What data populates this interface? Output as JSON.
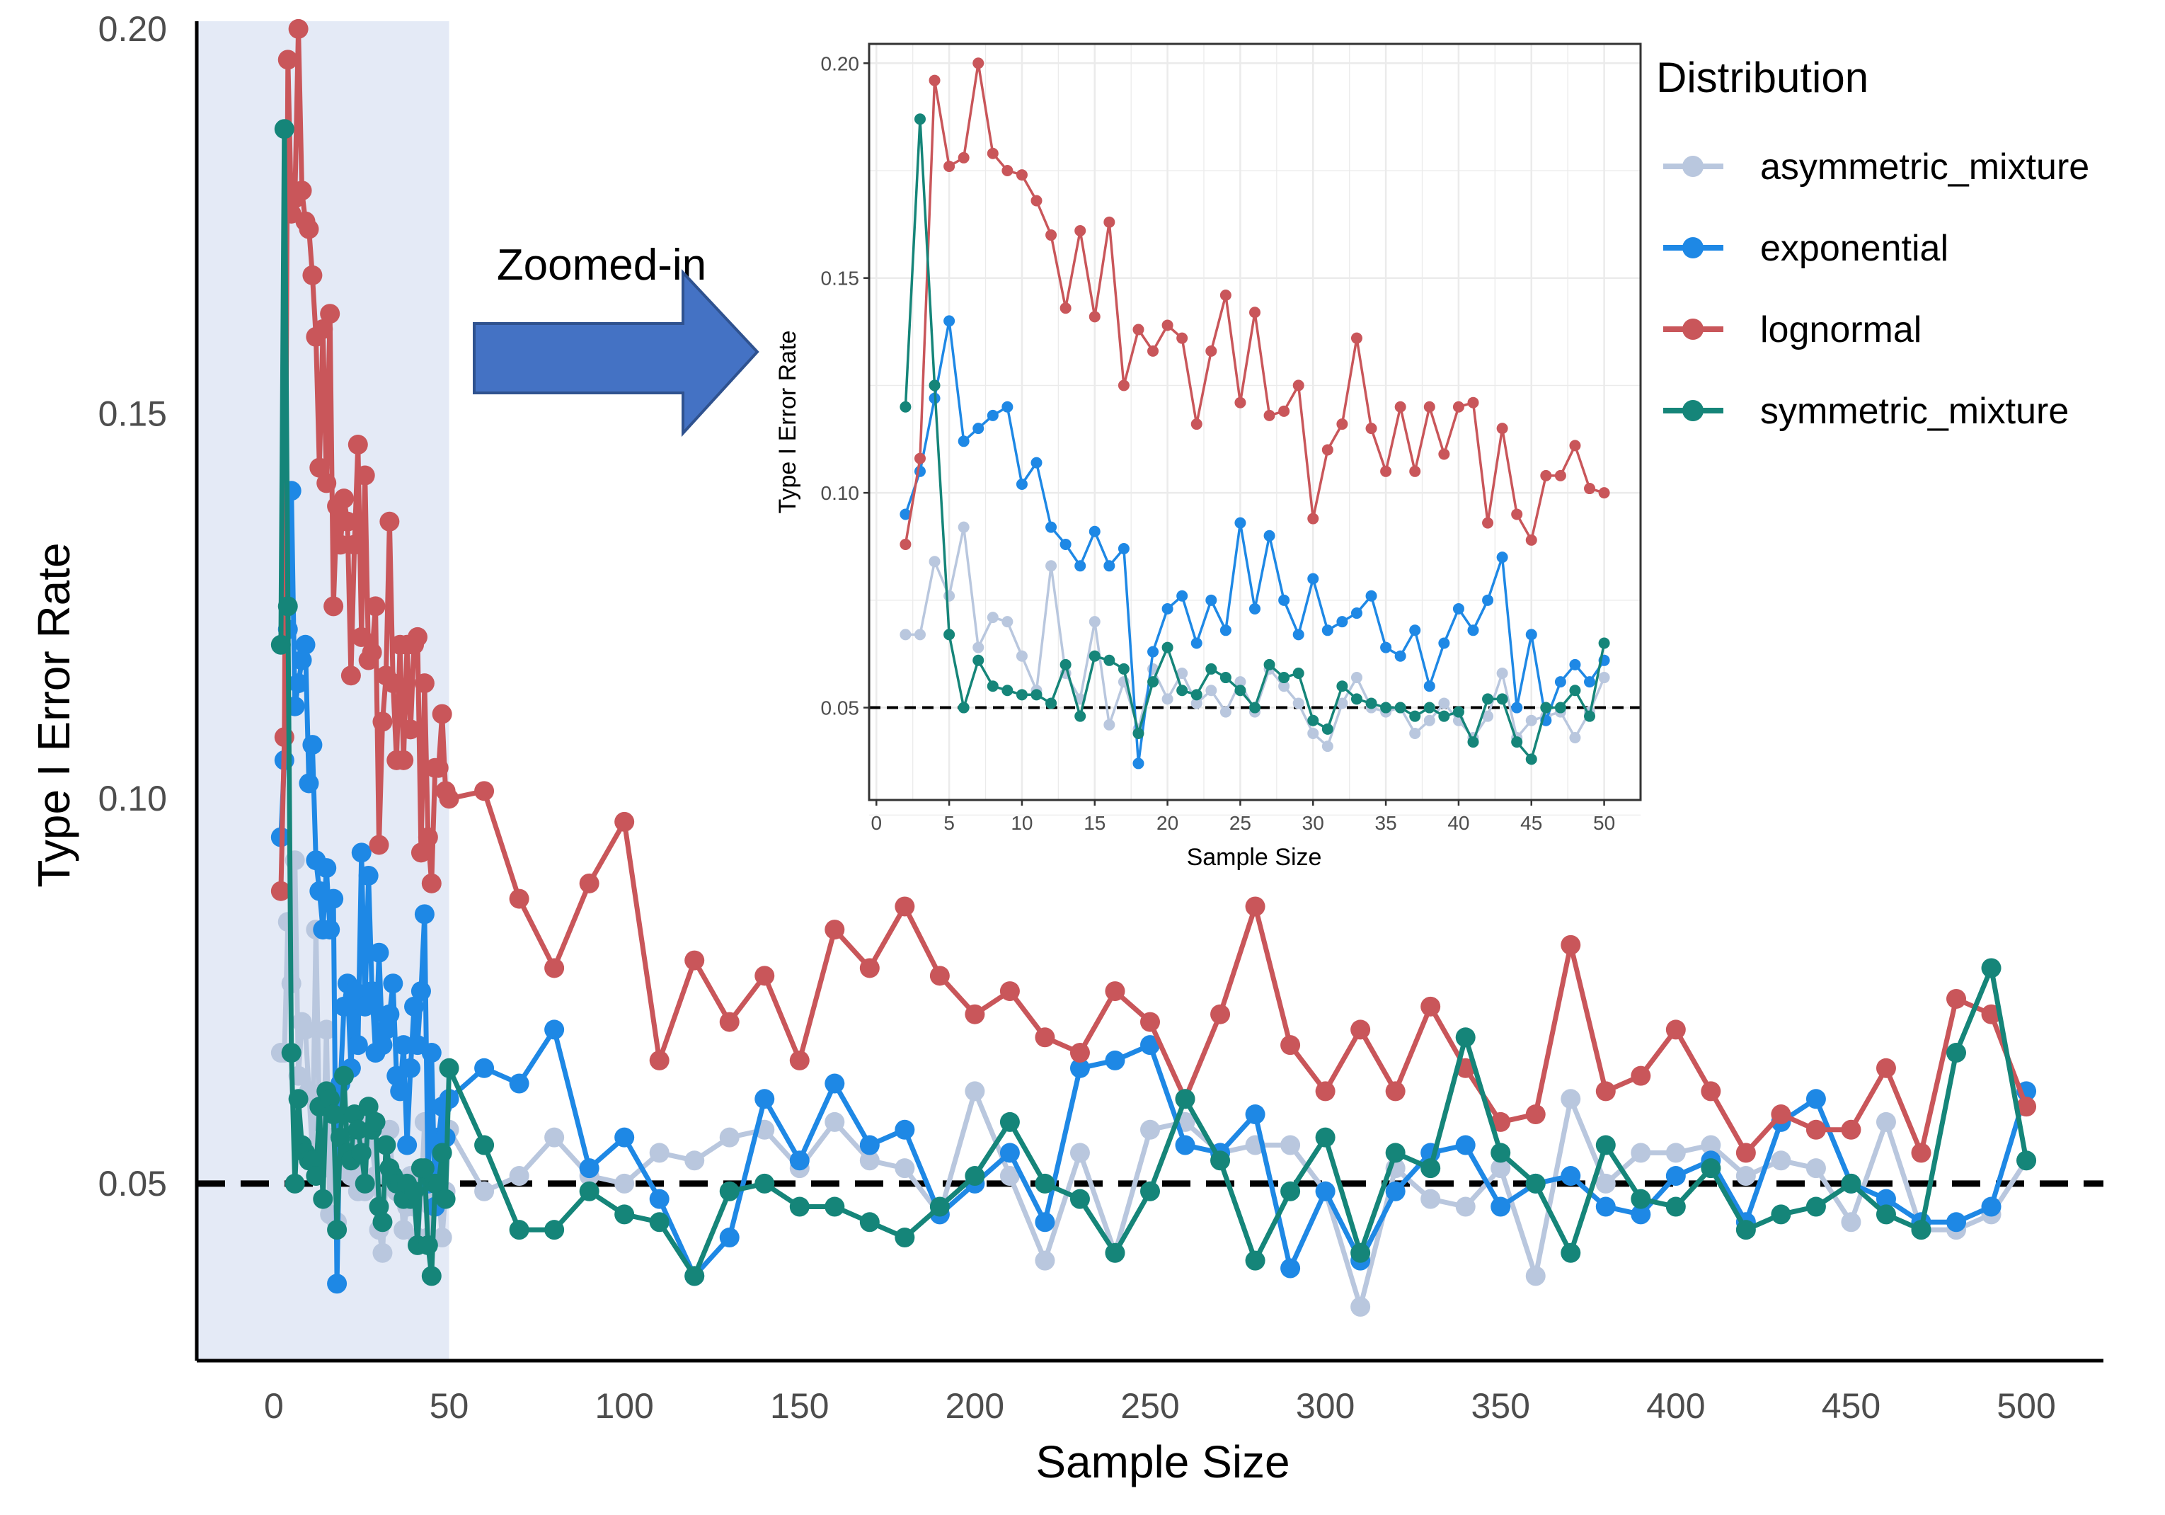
{
  "annotation": "Zoomed-in",
  "legend": {
    "title": "Distribution",
    "items": [
      {
        "label": "asymmetric_mixture",
        "color": "#b9c7de"
      },
      {
        "label": "exponential",
        "color": "#1e88e5"
      },
      {
        "label": "lognormal",
        "color": "#c9565a"
      },
      {
        "label": "symmetric_mixture",
        "color": "#158579"
      }
    ]
  },
  "colors": {
    "highlight": "#e4eaf6",
    "arrow_fill": "#4472c4",
    "arrow_stroke": "#2f528f",
    "reference": "#000000"
  },
  "chart_data": [
    {
      "type": "line",
      "xlabel": "Sample Size",
      "ylabel": "Type I Error Rate",
      "xlim": [
        -22,
        522
      ],
      "ylim": [
        0.027,
        0.201
      ],
      "xticks": [
        0,
        50,
        100,
        150,
        200,
        250,
        300,
        350,
        400,
        450,
        500
      ],
      "yticks": [
        0.05,
        0.1,
        0.15,
        0.2
      ],
      "ytick_labels": [
        "0.05",
        "0.10",
        "0.15",
        "0.20"
      ],
      "highlight_x": [
        -22,
        50
      ],
      "reference_y": 0.05,
      "x": [
        2,
        3,
        4,
        5,
        6,
        7,
        8,
        9,
        10,
        11,
        12,
        13,
        14,
        15,
        16,
        17,
        18,
        19,
        20,
        21,
        22,
        23,
        24,
        25,
        26,
        27,
        28,
        29,
        30,
        31,
        32,
        33,
        34,
        35,
        36,
        37,
        38,
        39,
        40,
        41,
        42,
        43,
        44,
        45,
        46,
        47,
        48,
        49,
        50,
        60,
        70,
        80,
        90,
        100,
        110,
        120,
        130,
        140,
        150,
        160,
        170,
        180,
        190,
        200,
        210,
        220,
        230,
        240,
        250,
        260,
        270,
        280,
        290,
        300,
        310,
        320,
        330,
        340,
        350,
        360,
        370,
        380,
        390,
        400,
        410,
        420,
        430,
        440,
        450,
        460,
        470,
        480,
        490,
        500
      ],
      "series": [
        {
          "name": "asymmetric_mixture",
          "values": [
            0.067,
            0.067,
            0.084,
            0.076,
            0.092,
            0.064,
            0.071,
            0.07,
            0.062,
            0.054,
            0.083,
            0.058,
            0.052,
            0.07,
            0.046,
            0.056,
            0.045,
            0.059,
            0.052,
            0.058,
            0.051,
            0.054,
            0.049,
            0.056,
            0.049,
            0.059,
            0.055,
            0.051,
            0.044,
            0.041,
            0.051,
            0.057,
            0.05,
            0.049,
            0.05,
            0.044,
            0.047,
            0.051,
            0.047,
            0.043,
            0.048,
            0.058,
            0.043,
            0.047,
            0.048,
            0.049,
            0.043,
            0.049,
            0.057,
            0.049,
            0.051,
            0.056,
            0.051,
            0.05,
            0.054,
            0.053,
            0.056,
            0.057,
            0.052,
            0.058,
            0.053,
            0.052,
            0.046,
            0.062,
            0.051,
            0.04,
            0.054,
            0.041,
            0.057,
            0.058,
            0.054,
            0.055,
            0.055,
            0.049,
            0.034,
            0.052,
            0.048,
            0.047,
            0.052,
            0.038,
            0.061,
            0.05,
            0.054,
            0.054,
            0.055,
            0.051,
            0.053,
            0.052,
            0.045,
            0.058,
            0.044,
            0.044,
            0.046,
            0.053
          ]
        },
        {
          "name": "exponential",
          "values": [
            0.095,
            0.105,
            0.122,
            0.14,
            0.112,
            0.115,
            0.118,
            0.12,
            0.102,
            0.107,
            0.092,
            0.088,
            0.083,
            0.091,
            0.083,
            0.087,
            0.037,
            0.063,
            0.073,
            0.076,
            0.065,
            0.075,
            0.068,
            0.093,
            0.073,
            0.09,
            0.075,
            0.067,
            0.08,
            0.068,
            0.07,
            0.072,
            0.076,
            0.064,
            0.062,
            0.068,
            0.055,
            0.065,
            0.073,
            0.068,
            0.075,
            0.085,
            0.05,
            0.067,
            0.047,
            0.056,
            0.06,
            0.056,
            0.061,
            0.065,
            0.063,
            0.07,
            0.052,
            0.056,
            0.048,
            0.038,
            0.043,
            0.061,
            0.053,
            0.063,
            0.055,
            0.057,
            0.046,
            0.05,
            0.054,
            0.045,
            0.065,
            0.066,
            0.068,
            0.055,
            0.054,
            0.059,
            0.039,
            0.049,
            0.04,
            0.049,
            0.054,
            0.055,
            0.047,
            0.05,
            0.051,
            0.047,
            0.046,
            0.051,
            0.053,
            0.045,
            0.058,
            0.061,
            0.05,
            0.048,
            0.045,
            0.045,
            0.047,
            0.062
          ]
        },
        {
          "name": "lognormal",
          "values": [
            0.088,
            0.108,
            0.196,
            0.176,
            0.178,
            0.2,
            0.179,
            0.175,
            0.174,
            0.168,
            0.16,
            0.143,
            0.161,
            0.141,
            0.163,
            0.125,
            0.138,
            0.133,
            0.139,
            0.136,
            0.116,
            0.133,
            0.146,
            0.121,
            0.142,
            0.118,
            0.119,
            0.125,
            0.094,
            0.11,
            0.116,
            0.136,
            0.115,
            0.105,
            0.12,
            0.105,
            0.12,
            0.109,
            0.12,
            0.121,
            0.093,
            0.115,
            0.095,
            0.089,
            0.104,
            0.104,
            0.111,
            0.101,
            0.1,
            0.101,
            0.087,
            0.078,
            0.089,
            0.097,
            0.066,
            0.079,
            0.071,
            0.077,
            0.066,
            0.083,
            0.078,
            0.086,
            0.077,
            0.072,
            0.075,
            0.069,
            0.067,
            0.075,
            0.071,
            0.061,
            0.072,
            0.086,
            0.068,
            0.062,
            0.07,
            0.062,
            0.073,
            0.065,
            0.058,
            0.059,
            0.081,
            0.062,
            0.064,
            0.07,
            0.062,
            0.054,
            0.059,
            0.057,
            0.057,
            0.065,
            0.054,
            0.074,
            0.072,
            0.06
          ]
        },
        {
          "name": "symmetric_mixture",
          "values": [
            0.12,
            0.187,
            0.125,
            0.067,
            0.05,
            0.061,
            0.055,
            0.054,
            0.053,
            0.053,
            0.051,
            0.06,
            0.048,
            0.062,
            0.061,
            0.059,
            0.044,
            0.056,
            0.064,
            0.054,
            0.053,
            0.059,
            0.057,
            0.054,
            0.05,
            0.06,
            0.057,
            0.058,
            0.047,
            0.045,
            0.055,
            0.052,
            0.051,
            0.05,
            0.05,
            0.048,
            0.05,
            0.048,
            0.049,
            0.042,
            0.052,
            0.052,
            0.042,
            0.038,
            0.05,
            0.05,
            0.054,
            0.048,
            0.065,
            0.055,
            0.044,
            0.044,
            0.049,
            0.046,
            0.045,
            0.038,
            0.049,
            0.05,
            0.047,
            0.047,
            0.045,
            0.043,
            0.047,
            0.051,
            0.058,
            0.05,
            0.048,
            0.041,
            0.049,
            0.061,
            0.053,
            0.04,
            0.049,
            0.056,
            0.041,
            0.054,
            0.052,
            0.069,
            0.054,
            0.05,
            0.041,
            0.055,
            0.048,
            0.047,
            0.052,
            0.044,
            0.046,
            0.047,
            0.05,
            0.046,
            0.044,
            0.067,
            0.078,
            0.053
          ]
        }
      ]
    },
    {
      "type": "line",
      "xlabel": "Sample Size",
      "ylabel": "Type I Error Rate",
      "xlim": [
        -0.5,
        52.5
      ],
      "ylim": [
        0.0285,
        0.2045
      ],
      "xticks": [
        0,
        5,
        10,
        15,
        20,
        25,
        30,
        35,
        40,
        45,
        50
      ],
      "yticks": [
        0.05,
        0.1,
        0.15,
        0.2
      ],
      "ytick_labels": [
        "0.05",
        "0.10",
        "0.15",
        "0.20"
      ],
      "grid": true,
      "reference_y": 0.05,
      "x_ref": "x values 2..50 of chart_data[0]",
      "series_ref": "first 49 values of each series in chart_data[0]"
    }
  ]
}
